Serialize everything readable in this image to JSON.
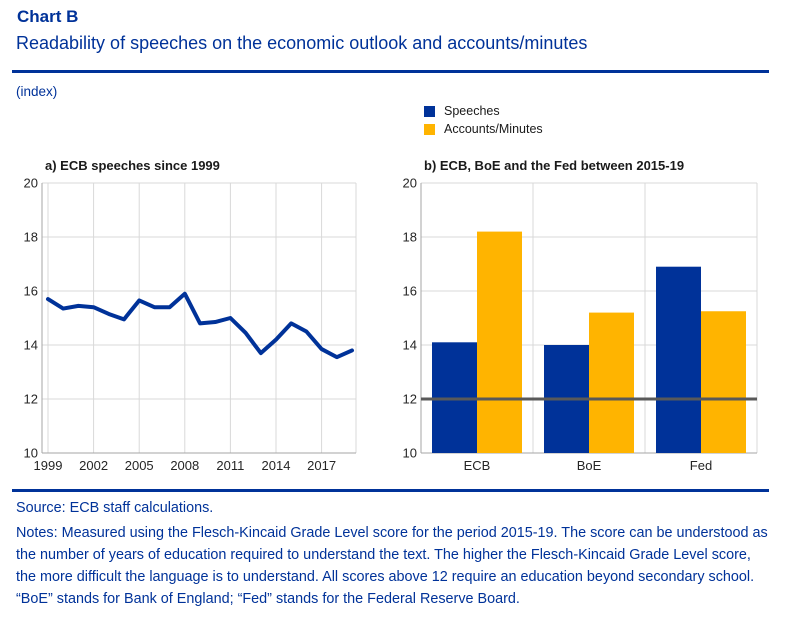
{
  "header": {
    "label": "Chart B",
    "title": "Readability of speeches on the economic outlook and accounts/minutes",
    "unit": "(index)"
  },
  "colors": {
    "brand_blue": "#003299",
    "speeches_blue": "#003299",
    "accounts_yellow": "#FFB400",
    "reference_line_gray": "#595959",
    "gridline_gray": "#d9d9d9",
    "axis_gray": "#a6a6a6"
  },
  "legend": {
    "items": [
      {
        "label": "Speeches",
        "color": "#003299"
      },
      {
        "label": "Accounts/Minutes",
        "color": "#FFB400"
      }
    ]
  },
  "chart_data": [
    {
      "id": "panel-a",
      "type": "line",
      "title": "a) ECB speeches since 1999",
      "x": [
        1999,
        2000,
        2001,
        2002,
        2003,
        2004,
        2005,
        2006,
        2007,
        2008,
        2009,
        2010,
        2011,
        2012,
        2013,
        2014,
        2015,
        2016,
        2017,
        2018,
        2019
      ],
      "series": [
        {
          "name": "Speeches",
          "color": "#003299",
          "values": [
            15.7,
            15.35,
            15.45,
            15.4,
            15.15,
            14.95,
            15.65,
            15.4,
            15.4,
            15.9,
            14.8,
            14.85,
            15.0,
            14.45,
            13.7,
            14.2,
            14.8,
            14.5,
            13.85,
            13.55,
            13.8
          ]
        }
      ],
      "xticks": [
        1999,
        2002,
        2005,
        2008,
        2011,
        2014,
        2017
      ],
      "ylim": [
        10,
        20
      ],
      "yticks": [
        10,
        12,
        14,
        16,
        18,
        20
      ],
      "grid": true,
      "legend_position": "top-right-of-figure"
    },
    {
      "id": "panel-b",
      "type": "bar",
      "title": "b) ECB, BoE and the Fed between 2015-19",
      "categories": [
        "ECB",
        "BoE",
        "Fed"
      ],
      "series": [
        {
          "name": "Speeches",
          "color": "#003299",
          "values": [
            14.1,
            14.0,
            16.9
          ]
        },
        {
          "name": "Accounts/Minutes",
          "color": "#FFB400",
          "values": [
            18.2,
            15.2,
            15.25
          ]
        }
      ],
      "reference_line": {
        "value": 12,
        "color": "#595959"
      },
      "ylim": [
        10,
        20
      ],
      "yticks": [
        10,
        12,
        14,
        16,
        18,
        20
      ],
      "grid": true
    }
  ],
  "footer": {
    "source": "Source: ECB staff calculations.",
    "notes": "Notes: Measured using the Flesch-Kincaid Grade Level score for the period 2015-19. The score can be understood as the number of years of education required to understand the text. The higher the Flesch-Kincaid Grade Level score, the more difficult the language is to understand. All scores above 12 require an education beyond secondary school. “BoE” stands for Bank of England; “Fed” stands for the Federal Reserve Board."
  }
}
